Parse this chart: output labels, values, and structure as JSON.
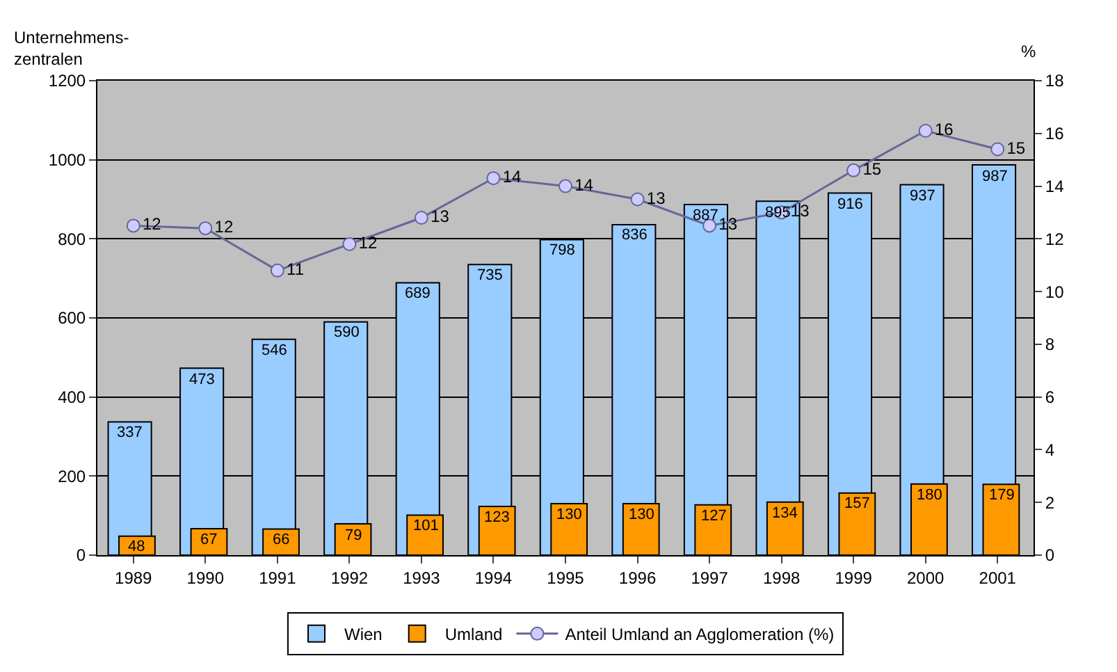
{
  "chart_data": {
    "type": "bar",
    "ylabel": "Unternehmens-\nzentralen",
    "y2label": "%",
    "categories": [
      "1989",
      "1990",
      "1991",
      "1992",
      "1993",
      "1994",
      "1995",
      "1996",
      "1997",
      "1998",
      "1999",
      "2000",
      "2001"
    ],
    "series": [
      {
        "name": "Wien",
        "color": "#99ccff",
        "values": [
          337,
          473,
          546,
          590,
          689,
          735,
          798,
          836,
          887,
          895,
          916,
          937,
          987
        ]
      },
      {
        "name": "Umland",
        "color": "#ff9900",
        "values": [
          48,
          67,
          66,
          79,
          101,
          123,
          130,
          130,
          127,
          134,
          157,
          180,
          179
        ]
      },
      {
        "name": "Anteil Umland an Agglomeration (%)",
        "type": "line",
        "axis": "y2",
        "color": "#666699",
        "marker": "circle",
        "values": [
          12.5,
          12.4,
          10.8,
          11.8,
          12.8,
          14.3,
          14.0,
          13.5,
          12.5,
          13.0,
          14.6,
          16.1,
          15.4
        ],
        "value_labels": [
          "12",
          "12",
          "11",
          "12",
          "13",
          "14",
          "14",
          "13",
          "13",
          "13",
          "15",
          "16",
          "15"
        ]
      }
    ],
    "ylim": [
      0,
      1200
    ],
    "yticks": [
      0,
      200,
      400,
      600,
      800,
      1000,
      1200
    ],
    "y2lim": [
      0,
      18
    ],
    "y2ticks": [
      0,
      2,
      4,
      6,
      8,
      10,
      12,
      14,
      16,
      18
    ],
    "data_labels": true,
    "grid": "y",
    "legend": "bottom"
  }
}
